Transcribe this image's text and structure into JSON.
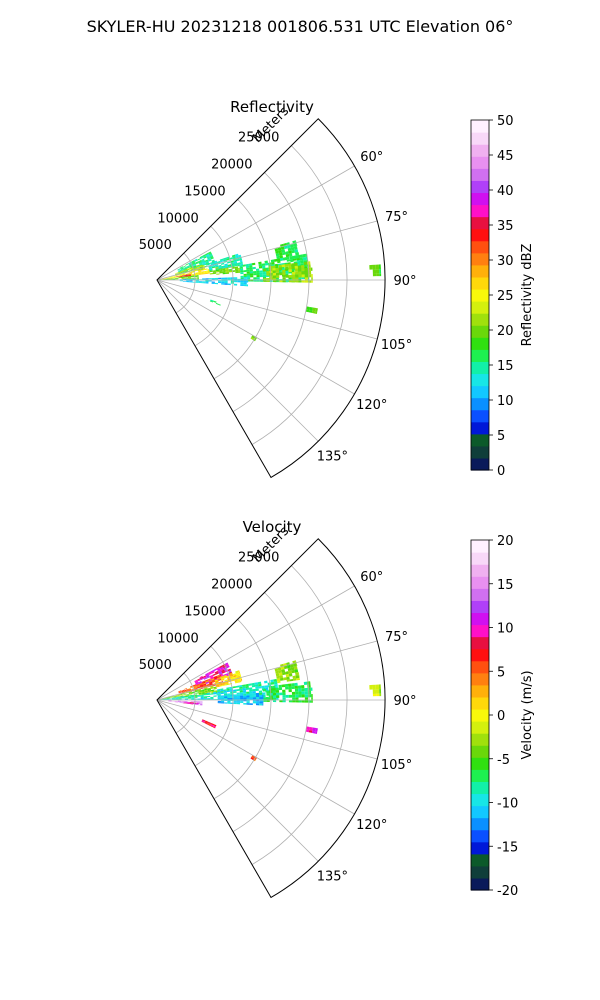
{
  "figure": {
    "title": "SKYLER-HU  20231218  001806.531 UTC Elevation 06°"
  },
  "chart_data": [
    {
      "type": "heatmap",
      "projection": "polar-sector",
      "title": "Reflectivity",
      "range_label": "Meters",
      "range_ticks": [
        "5000",
        "10000",
        "15000",
        "20000",
        "25000"
      ],
      "range_tick_values": [
        5000,
        10000,
        15000,
        20000,
        25000
      ],
      "range_max": 30000,
      "angle_ticks": [
        "60°",
        "75°",
        "90°",
        "105°",
        "120°",
        "135°"
      ],
      "angle_tick_values": [
        60,
        75,
        90,
        105,
        120,
        135
      ],
      "angle_range": [
        45,
        150
      ],
      "grid": true,
      "colorbar": {
        "label": "Reflectivity dBZ",
        "ticks": [
          "0",
          "5",
          "10",
          "15",
          "20",
          "25",
          "30",
          "35",
          "40",
          "45",
          "50"
        ],
        "min": 0,
        "max": 50,
        "colors": [
          "#0a1a5a",
          "#0f3e3a",
          "#0b5a2a",
          "#0018d8",
          "#0a50ff",
          "#0a90ff",
          "#12c8ff",
          "#17e6e6",
          "#12f0a8",
          "#1ef050",
          "#30e010",
          "#6ad80a",
          "#a0e00c",
          "#d4f00e",
          "#f8f80a",
          "#ffd80a",
          "#ffb00a",
          "#ff8010",
          "#ff5010",
          "#ff1010",
          "#e81040",
          "#ff10c8",
          "#d010f0",
          "#b040f8",
          "#d070f0",
          "#e890f0",
          "#f0b0f0",
          "#f8d8f8",
          "#fff0ff"
        ]
      },
      "echoes": [
        {
          "az": [
            62,
            75
          ],
          "r": [
            3000,
            8000
          ],
          "v": 15
        },
        {
          "az": [
            70,
            77
          ],
          "r": [
            2500,
            6500
          ],
          "v": 22
        },
        {
          "az": [
            77,
            83
          ],
          "r": [
            500,
            7000
          ],
          "v": 26
        },
        {
          "az": [
            80,
            84
          ],
          "r": [
            2500,
            4500
          ],
          "v": 34
        },
        {
          "az": [
            83,
            90
          ],
          "r": [
            300,
            5500
          ],
          "v": 20
        },
        {
          "az": [
            78,
            85
          ],
          "r": [
            7000,
            11000
          ],
          "v": 20
        },
        {
          "az": [
            72,
            80
          ],
          "r": [
            7000,
            11500
          ],
          "v": 14
        },
        {
          "az": [
            80,
            91
          ],
          "r": [
            11000,
            20000
          ],
          "v": 16
        },
        {
          "az": [
            83,
            91
          ],
          "r": [
            14000,
            20500
          ],
          "v": 21
        },
        {
          "az": [
            88,
            94
          ],
          "r": [
            3000,
            12000
          ],
          "v": 12
        },
        {
          "az": [
            74,
            82
          ],
          "r": [
            16000,
            19000
          ],
          "v": 17
        },
        {
          "az": [
            86,
            89
          ],
          "r": [
            28000,
            29500
          ],
          "v": 19
        },
        {
          "az": [
            110,
            112
          ],
          "r": [
            7500,
            9000
          ],
          "v": 15
        },
        {
          "az": [
            100,
            102
          ],
          "r": [
            20000,
            21500
          ],
          "v": 19
        },
        {
          "az": [
            120,
            122
          ],
          "r": [
            14500,
            15200
          ],
          "v": 20
        }
      ]
    },
    {
      "type": "heatmap",
      "projection": "polar-sector",
      "title": "Velocity",
      "range_label": "Meters",
      "range_ticks": [
        "5000",
        "10000",
        "15000",
        "20000",
        "25000"
      ],
      "range_tick_values": [
        5000,
        10000,
        15000,
        20000,
        25000
      ],
      "range_max": 30000,
      "angle_ticks": [
        "60°",
        "75°",
        "90°",
        "105°",
        "120°",
        "135°"
      ],
      "angle_tick_values": [
        60,
        75,
        90,
        105,
        120,
        135
      ],
      "angle_range": [
        45,
        150
      ],
      "grid": true,
      "colorbar": {
        "label": "Velocity (m/s)",
        "ticks": [
          "-20",
          "-15",
          "-10",
          "-5",
          "0",
          "5",
          "10",
          "15",
          "20"
        ],
        "min": -20,
        "max": 20,
        "colors": [
          "#0a1a5a",
          "#0f3e3a",
          "#0b5a2a",
          "#0018d8",
          "#0a50ff",
          "#0a90ff",
          "#12c8ff",
          "#17e6e6",
          "#12f0a8",
          "#1ef050",
          "#30e010",
          "#6ad80a",
          "#a0e00c",
          "#d4f00e",
          "#f8f80a",
          "#ffd80a",
          "#ffb00a",
          "#ff8010",
          "#ff5010",
          "#ff1010",
          "#e81040",
          "#ff10c8",
          "#d010f0",
          "#b040f8",
          "#d070f0",
          "#e890f0",
          "#f0b0f0",
          "#f8d8f8",
          "#fff0ff"
        ]
      },
      "echoes": [
        {
          "az": [
            62,
            72
          ],
          "r": [
            5500,
            10500
          ],
          "v": 10
        },
        {
          "az": [
            68,
            76
          ],
          "r": [
            3000,
            9000
          ],
          "v": 5
        },
        {
          "az": [
            70,
            78
          ],
          "r": [
            8000,
            11500
          ],
          "v": 1
        },
        {
          "az": [
            76,
            84
          ],
          "r": [
            500,
            8000
          ],
          "v": -4
        },
        {
          "az": [
            82,
            90
          ],
          "r": [
            300,
            8000
          ],
          "v": -9
        },
        {
          "az": [
            92,
            97
          ],
          "r": [
            1500,
            6000
          ],
          "v": 15
        },
        {
          "az": [
            94,
            97
          ],
          "r": [
            3500,
            5500
          ],
          "v": 10
        },
        {
          "az": [
            80,
            90
          ],
          "r": [
            8000,
            16000
          ],
          "v": -9
        },
        {
          "az": [
            83,
            91
          ],
          "r": [
            14000,
            20500
          ],
          "v": -7
        },
        {
          "az": [
            86,
            93
          ],
          "r": [
            8000,
            14000
          ],
          "v": -11
        },
        {
          "az": [
            74,
            82
          ],
          "r": [
            16000,
            19000
          ],
          "v": -3
        },
        {
          "az": [
            86,
            89
          ],
          "r": [
            28000,
            29500
          ],
          "v": -2
        },
        {
          "az": [
            113,
            116
          ],
          "r": [
            6500,
            8500
          ],
          "v": 8
        },
        {
          "az": [
            100,
            102
          ],
          "r": [
            20000,
            21500
          ],
          "v": 10
        },
        {
          "az": [
            120,
            122
          ],
          "r": [
            14500,
            15200
          ],
          "v": 5
        }
      ]
    }
  ]
}
